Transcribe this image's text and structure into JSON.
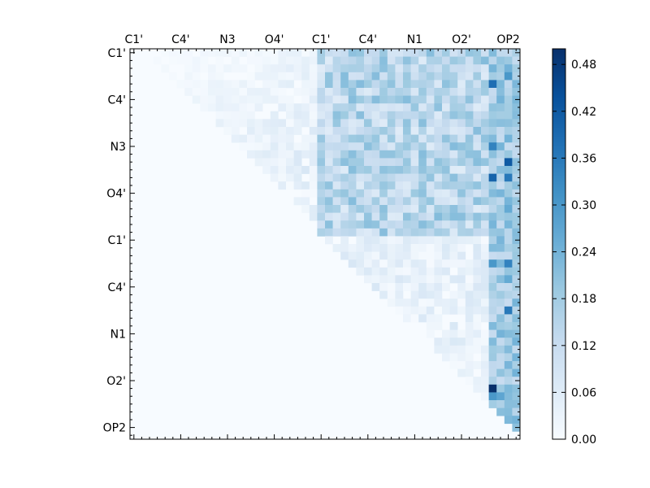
{
  "chart_data": {
    "type": "heatmap",
    "title": "",
    "xlabel": "",
    "ylabel": "",
    "matrix_size": 50,
    "atom_labels_top": [
      "C1'",
      "C4'",
      "N3",
      "O4'",
      "C1'",
      "C4'",
      "N1",
      "O2'",
      "OP2"
    ],
    "atom_labels_left": [
      "C1'",
      "C4'",
      "N3",
      "O4'",
      "C1'",
      "C4'",
      "N1",
      "O2'",
      "OP2"
    ],
    "label_indices": [
      0,
      6,
      12,
      18,
      24,
      30,
      36,
      42,
      48
    ],
    "colorbar": {
      "colormap": "Blues",
      "min": 0.0,
      "max": 0.5,
      "ticks": [
        "0.00",
        "0.06",
        "0.12",
        "0.18",
        "0.24",
        "0.30",
        "0.36",
        "0.42",
        "0.48"
      ]
    },
    "structure": "upper-triangular matrix; lower triangle near 0.00",
    "notable_cells": [
      {
        "row": 43,
        "col": 46,
        "value": 0.5
      },
      {
        "row": 44,
        "col": 46,
        "value": 0.3
      },
      {
        "row": 44,
        "col": 47,
        "value": 0.27
      },
      {
        "row": 44,
        "col": 48,
        "value": 0.22
      },
      {
        "row": 14,
        "col": 48,
        "value": 0.42
      },
      {
        "row": 16,
        "col": 48,
        "value": 0.36
      },
      {
        "row": 4,
        "col": 46,
        "value": 0.38
      },
      {
        "row": 33,
        "col": 48,
        "value": 0.36
      },
      {
        "row": 27,
        "col": 48,
        "value": 0.34
      },
      {
        "row": 27,
        "col": 46,
        "value": 0.3
      },
      {
        "row": 12,
        "col": 46,
        "value": 0.34
      },
      {
        "row": 16,
        "col": 46,
        "value": 0.4
      },
      {
        "row": 2,
        "col": 48,
        "value": 0.24
      },
      {
        "row": 3,
        "col": 48,
        "value": 0.3
      },
      {
        "row": 20,
        "col": 48,
        "value": 0.26
      },
      {
        "row": 29,
        "col": 48,
        "value": 0.26
      },
      {
        "row": 32,
        "col": 46,
        "value": 0.14
      },
      {
        "row": 38,
        "col": 48,
        "value": 0.22
      }
    ]
  }
}
